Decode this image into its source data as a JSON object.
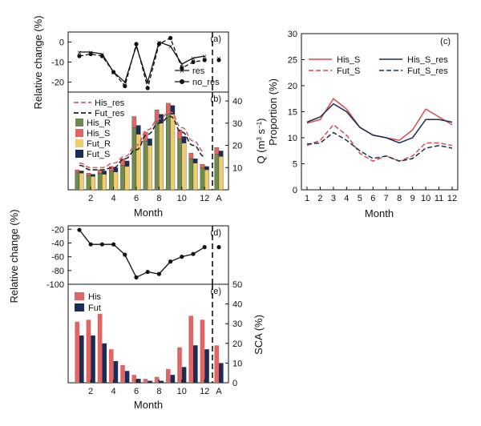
{
  "colors": {
    "his_r": "#6e8a4e",
    "his_s": "#e06666",
    "fut_r": "#f2cc6b",
    "fut_s": "#1a2d5a",
    "his_res_line": "#c86478",
    "fut_res_line": "#222222",
    "c_his": "#d94a4a",
    "c_his_res": "#1a2d5a",
    "sca_his": "#e06666",
    "sca_fut": "#1a2d5a"
  },
  "chart_data": [
    {
      "panel_label": "(a)",
      "type": "line",
      "ylabel": "Relative change (%)",
      "ylim": [
        -25,
        5
      ],
      "yticks": [
        0,
        -10,
        -20
      ],
      "x": [
        1,
        2,
        3,
        4,
        5,
        6,
        7,
        8,
        9,
        10,
        11,
        12
      ],
      "series": [
        {
          "name": "res",
          "values": [
            -5,
            -5,
            -6,
            -15,
            -20,
            -2,
            -20,
            0,
            -2,
            -11,
            -8,
            -7
          ]
        },
        {
          "name": "no_res",
          "values": [
            -7,
            -6,
            -7,
            -15,
            -22,
            -1,
            -23,
            -1,
            2,
            -13,
            -10,
            -9
          ]
        }
      ],
      "annual": {
        "label": "A",
        "res": -8,
        "no_res": -9
      }
    },
    {
      "panel_label": "(b)",
      "type": "bar",
      "xlabel": "Month",
      "ylabel_right": "Q (m³ s⁻¹)",
      "ylabel_unit_prefix": "Q (m",
      "ylabel_unit_exp1": "3",
      "ylabel_unit_mid": " s",
      "ylabel_unit_exp2": "−1",
      "ylabel_unit_suffix": ")",
      "ylim": [
        0,
        44
      ],
      "yticks": [
        10,
        20,
        30,
        40
      ],
      "x": [
        1,
        2,
        3,
        4,
        5,
        6,
        7,
        8,
        9,
        10,
        11,
        12
      ],
      "xticks": [
        "2",
        "4",
        "6",
        "8",
        "10",
        "12"
      ],
      "annual_label": "A",
      "bar_groups": [
        {
          "R_his": 8,
          "S_his": 1,
          "R_fut": 7.5,
          "S_fut": 1
        },
        {
          "R_his": 6.5,
          "S_his": 1,
          "R_fut": 6,
          "S_fut": 1
        },
        {
          "R_his": 7.5,
          "S_his": 1.5,
          "R_fut": 7,
          "S_fut": 1.5
        },
        {
          "R_his": 8.5,
          "S_his": 2,
          "R_fut": 8,
          "S_fut": 2
        },
        {
          "R_his": 11,
          "S_his": 3,
          "R_fut": 10.5,
          "S_fut": 2.5
        },
        {
          "R_his": 28,
          "S_his": 5,
          "R_fut": 25,
          "S_fut": 4
        },
        {
          "R_his": 22,
          "S_his": 4,
          "R_fut": 20,
          "S_fut": 3
        },
        {
          "R_his": 31,
          "S_his": 5,
          "R_fut": 30,
          "S_fut": 4
        },
        {
          "R_his": 34,
          "S_his": 5,
          "R_fut": 34,
          "S_fut": 4
        },
        {
          "R_his": 23,
          "S_his": 4,
          "R_fut": 21,
          "S_fut": 3
        },
        {
          "R_his": 14,
          "S_his": 2.5,
          "R_fut": 12,
          "S_fut": 2
        },
        {
          "R_his": 10,
          "S_his": 1.5,
          "R_fut": 9,
          "S_fut": 1.5
        }
      ],
      "annual_bars": {
        "R_his": 16,
        "S_his": 3,
        "R_fut": 15,
        "S_fut": 2.5
      },
      "lines": [
        {
          "name": "His_res",
          "values": [
            12,
            10,
            10,
            12,
            15,
            20,
            27,
            32,
            35,
            28,
            22,
            17
          ]
        },
        {
          "name": "Fut_res",
          "values": [
            11,
            9,
            9,
            10,
            14,
            18,
            25,
            30,
            33,
            26,
            20,
            15
          ]
        }
      ],
      "legend_lines": [
        "His_res",
        "Fut_res"
      ],
      "legend_bars": [
        "His_R",
        "His_S",
        "Fut_R",
        "Fut_S"
      ]
    },
    {
      "panel_label": "(c)",
      "type": "line",
      "xlabel": "Month",
      "ylabel": "Proportion (%)",
      "ylim": [
        0,
        30
      ],
      "yticks": [
        0,
        5,
        10,
        15,
        20,
        25,
        30
      ],
      "x": [
        1,
        2,
        3,
        4,
        5,
        6,
        7,
        8,
        9,
        10,
        11,
        12
      ],
      "series": [
        {
          "name": "His_S",
          "values": [
            12.8,
            13.5,
            17.5,
            15.5,
            12,
            10.5,
            10,
            9.5,
            11.5,
            15.5,
            14,
            12.5
          ]
        },
        {
          "name": "Fut_S",
          "values": [
            8.5,
            9.5,
            12.5,
            10.5,
            7,
            5.5,
            6.5,
            5.5,
            6.5,
            9,
            9,
            8.5
          ]
        },
        {
          "name": "His_S_res",
          "values": [
            13,
            14,
            16.5,
            15,
            12,
            10.5,
            10,
            9,
            10,
            13.5,
            13.5,
            13
          ]
        },
        {
          "name": "Fut_S_res",
          "values": [
            8.8,
            9,
            11,
            9.5,
            7.5,
            6,
            6.5,
            5.5,
            6,
            8,
            8.5,
            8
          ]
        }
      ]
    },
    {
      "panel_label": "(d)",
      "type": "line",
      "ylabel": "Relative change (%)",
      "ylim": [
        -100,
        -15
      ],
      "yticks": [
        -20,
        -40,
        -60,
        -80,
        -100
      ],
      "x": [
        1,
        2,
        3,
        4,
        5,
        6,
        7,
        8,
        9,
        10,
        11,
        12
      ],
      "values": [
        -21,
        -42,
        -42,
        -42,
        -57,
        -90,
        -82,
        -85,
        -67,
        -60,
        -56,
        -46
      ],
      "annual": {
        "label": "A",
        "value": -46
      }
    },
    {
      "panel_label": "(e)",
      "type": "bar",
      "xlabel": "Month",
      "ylabel_right": "SCA (%)",
      "ylim": [
        0,
        50
      ],
      "yticks": [
        0,
        10,
        20,
        30,
        40,
        50
      ],
      "x": [
        1,
        2,
        3,
        4,
        5,
        6,
        7,
        8,
        9,
        10,
        11,
        12
      ],
      "xticks": [
        "2",
        "4",
        "6",
        "8",
        "10",
        "12"
      ],
      "annual_label": "A",
      "series": [
        {
          "name": "His",
          "values": [
            31,
            32,
            35,
            17,
            9,
            4,
            2,
            3,
            7,
            18,
            34,
            32
          ],
          "annual": 19
        },
        {
          "name": "Fut",
          "values": [
            24,
            24,
            20,
            11,
            6,
            2,
            1,
            1,
            4,
            8,
            19,
            17
          ],
          "annual": 10
        }
      ]
    }
  ]
}
